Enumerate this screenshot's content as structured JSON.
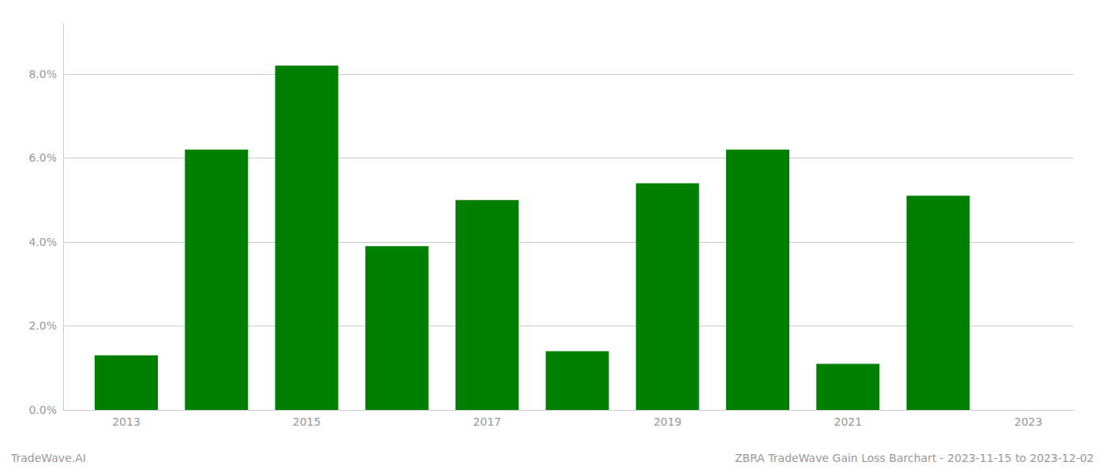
{
  "chart_data": {
    "type": "bar",
    "x": [
      2013,
      2014,
      2015,
      2016,
      2017,
      2018,
      2019,
      2020,
      2021,
      2022
    ],
    "values": [
      0.013,
      0.062,
      0.082,
      0.039,
      0.05,
      0.014,
      0.054,
      0.062,
      0.011,
      0.051
    ],
    "color": "#008000",
    "xlim": [
      2012.3,
      2023.5
    ],
    "xticks": [
      2013,
      2015,
      2017,
      2019,
      2021,
      2023
    ],
    "ylim": [
      0,
      0.092
    ],
    "yticks": [
      {
        "value": 0.0,
        "label": "0.0%"
      },
      {
        "value": 0.02,
        "label": "2.0%"
      },
      {
        "value": 0.04,
        "label": "4.0%"
      },
      {
        "value": 0.06,
        "label": "6.0%"
      },
      {
        "value": 0.08,
        "label": "8.0%"
      }
    ],
    "grid": true,
    "annotations": [
      "TradeWave.AI",
      "ZBRA TradeWave Gain Loss Barchart - 2023-11-15 to 2023-12-02"
    ]
  }
}
